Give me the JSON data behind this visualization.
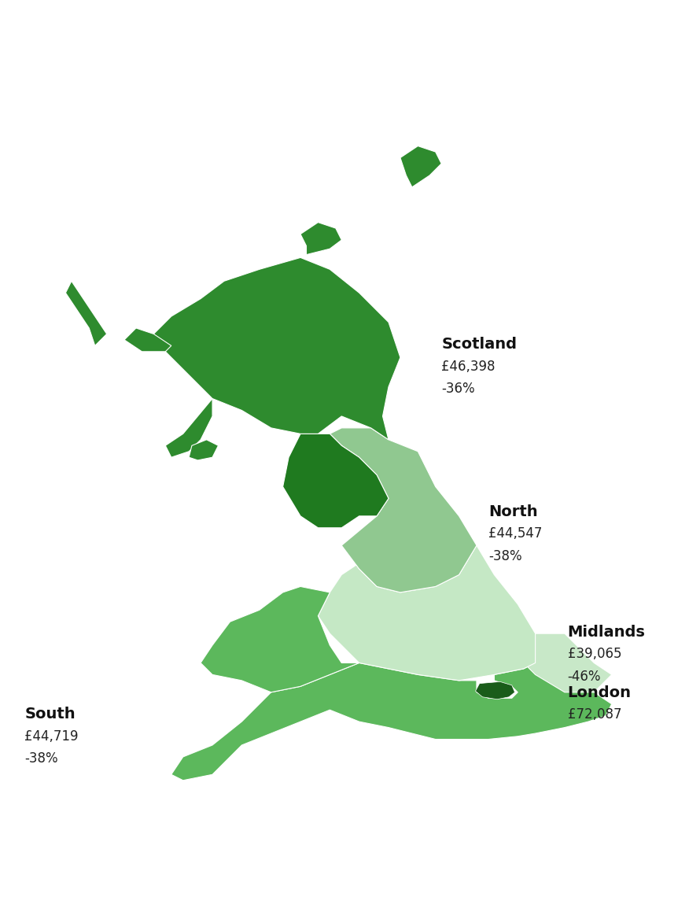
{
  "background_color": "#ffffff",
  "regions": {
    "Scotland": {
      "salary_str": "£46,398",
      "pct": "-36%",
      "color": "#2e8b2e",
      "label_lon": -1.2,
      "label_lat": 57.6,
      "show_pct": true
    },
    "North": {
      "salary_str": "£44,547",
      "pct": "-38%",
      "color": "#7cba7c",
      "label_lon": -0.5,
      "label_lat": 54.8,
      "show_pct": true
    },
    "Midlands": {
      "salary_str": "£39,065",
      "pct": "-46%",
      "color": "#c5e8c5",
      "label_lon": 1.0,
      "label_lat": 52.8,
      "show_pct": true
    },
    "South": {
      "salary_str": "£44,719",
      "pct": "-38%",
      "color": "#5cb85c",
      "label_lon": -5.8,
      "label_lat": 51.3,
      "show_pct": true
    },
    "London": {
      "salary_str": "£72,087",
      "pct": null,
      "color": "#1a5c1a",
      "label_lon": 1.0,
      "label_lat": 51.65,
      "show_pct": false
    }
  },
  "colors": {
    "scotland_main": "#2e8b2e",
    "north_nw": "#1f6b1f",
    "north_ne": "#7cba7c",
    "yorkshire": "#90c890",
    "midlands": "#c5e8c5",
    "east": "#d4efd4",
    "wales": "#5cb85c",
    "london": "#1a5c1a",
    "south": "#5cb85c"
  },
  "lon_min": -8.5,
  "lon_max": 3.0,
  "lat_min": 49.5,
  "lat_max": 61.8
}
